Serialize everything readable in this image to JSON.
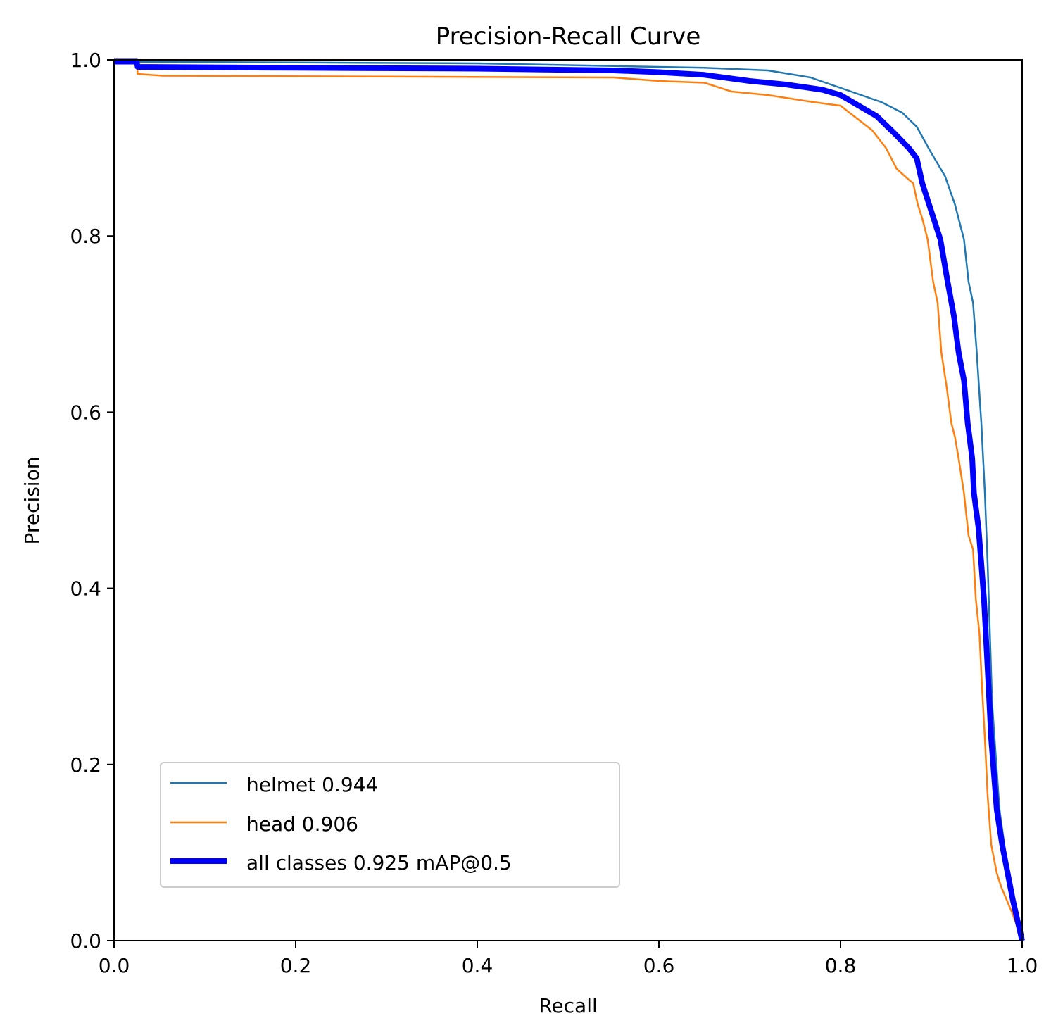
{
  "chart_data": {
    "type": "line",
    "title": "Precision-Recall Curve",
    "xlabel": "Recall",
    "ylabel": "Precision",
    "xlim": [
      0,
      1
    ],
    "ylim": [
      0,
      1
    ],
    "grid": false,
    "legend_position": "lower-left",
    "xticks": [
      "0.0",
      "0.2",
      "0.4",
      "0.6",
      "0.8",
      "1.0"
    ],
    "yticks": [
      "0.0",
      "0.2",
      "0.4",
      "0.6",
      "0.8",
      "1.0"
    ],
    "series": [
      {
        "name": "helmet 0.944",
        "color": "#1f77b4",
        "points": [
          [
            0,
            0.998
          ],
          [
            0.2,
            0.997
          ],
          [
            0.4,
            0.996
          ],
          [
            0.55,
            0.993
          ],
          [
            0.65,
            0.991
          ],
          [
            0.72,
            0.988
          ],
          [
            0.767,
            0.98
          ],
          [
            0.806,
            0.966
          ],
          [
            0.845,
            0.952
          ],
          [
            0.868,
            0.94
          ],
          [
            0.884,
            0.924
          ],
          [
            0.899,
            0.896
          ],
          [
            0.915,
            0.868
          ],
          [
            0.926,
            0.836
          ],
          [
            0.936,
            0.796
          ],
          [
            0.941,
            0.748
          ],
          [
            0.946,
            0.724
          ],
          [
            0.95,
            0.668
          ],
          [
            0.955,
            0.588
          ],
          [
            0.959,
            0.508
          ],
          [
            0.962,
            0.428
          ],
          [
            0.967,
            0.269
          ],
          [
            0.975,
            0.149
          ],
          [
            0.99,
            0.037
          ],
          [
            1.0,
            0.0
          ]
        ]
      },
      {
        "name": "head 0.906",
        "color": "#ff7f0e",
        "points": [
          [
            0,
            0.998
          ],
          [
            0.025,
            0.998
          ],
          [
            0.026,
            0.984
          ],
          [
            0.053,
            0.982
          ],
          [
            0.3,
            0.981
          ],
          [
            0.55,
            0.98
          ],
          [
            0.6,
            0.976
          ],
          [
            0.65,
            0.974
          ],
          [
            0.68,
            0.964
          ],
          [
            0.72,
            0.96
          ],
          [
            0.77,
            0.952
          ],
          [
            0.8,
            0.948
          ],
          [
            0.815,
            0.936
          ],
          [
            0.835,
            0.92
          ],
          [
            0.85,
            0.9
          ],
          [
            0.862,
            0.876
          ],
          [
            0.875,
            0.864
          ],
          [
            0.88,
            0.86
          ],
          [
            0.885,
            0.836
          ],
          [
            0.89,
            0.82
          ],
          [
            0.896,
            0.796
          ],
          [
            0.902,
            0.748
          ],
          [
            0.907,
            0.724
          ],
          [
            0.911,
            0.668
          ],
          [
            0.917,
            0.628
          ],
          [
            0.922,
            0.588
          ],
          [
            0.926,
            0.572
          ],
          [
            0.93,
            0.548
          ],
          [
            0.936,
            0.508
          ],
          [
            0.941,
            0.46
          ],
          [
            0.946,
            0.444
          ],
          [
            0.949,
            0.388
          ],
          [
            0.953,
            0.348
          ],
          [
            0.956,
            0.285
          ],
          [
            0.959,
            0.229
          ],
          [
            0.962,
            0.165
          ],
          [
            0.966,
            0.109
          ],
          [
            0.972,
            0.077
          ],
          [
            0.977,
            0.061
          ],
          [
            0.99,
            0.029
          ],
          [
            1.0,
            0.0
          ]
        ]
      },
      {
        "name": "all classes 0.925 mAP@0.5",
        "color": "#0000ff",
        "points": [
          [
            0,
            0.998
          ],
          [
            0.025,
            0.998
          ],
          [
            0.026,
            0.992
          ],
          [
            0.2,
            0.991
          ],
          [
            0.4,
            0.99
          ],
          [
            0.55,
            0.988
          ],
          [
            0.6,
            0.986
          ],
          [
            0.65,
            0.983
          ],
          [
            0.7,
            0.976
          ],
          [
            0.74,
            0.972
          ],
          [
            0.78,
            0.966
          ],
          [
            0.8,
            0.96
          ],
          [
            0.82,
            0.948
          ],
          [
            0.84,
            0.936
          ],
          [
            0.86,
            0.916
          ],
          [
            0.875,
            0.9
          ],
          [
            0.884,
            0.888
          ],
          [
            0.89,
            0.86
          ],
          [
            0.9,
            0.828
          ],
          [
            0.91,
            0.796
          ],
          [
            0.918,
            0.748
          ],
          [
            0.925,
            0.708
          ],
          [
            0.93,
            0.668
          ],
          [
            0.936,
            0.636
          ],
          [
            0.94,
            0.588
          ],
          [
            0.945,
            0.548
          ],
          [
            0.947,
            0.508
          ],
          [
            0.952,
            0.468
          ],
          [
            0.955,
            0.428
          ],
          [
            0.958,
            0.388
          ],
          [
            0.962,
            0.309
          ],
          [
            0.966,
            0.229
          ],
          [
            0.972,
            0.149
          ],
          [
            0.978,
            0.109
          ],
          [
            0.99,
            0.045
          ],
          [
            1.0,
            0.0
          ]
        ]
      }
    ]
  }
}
